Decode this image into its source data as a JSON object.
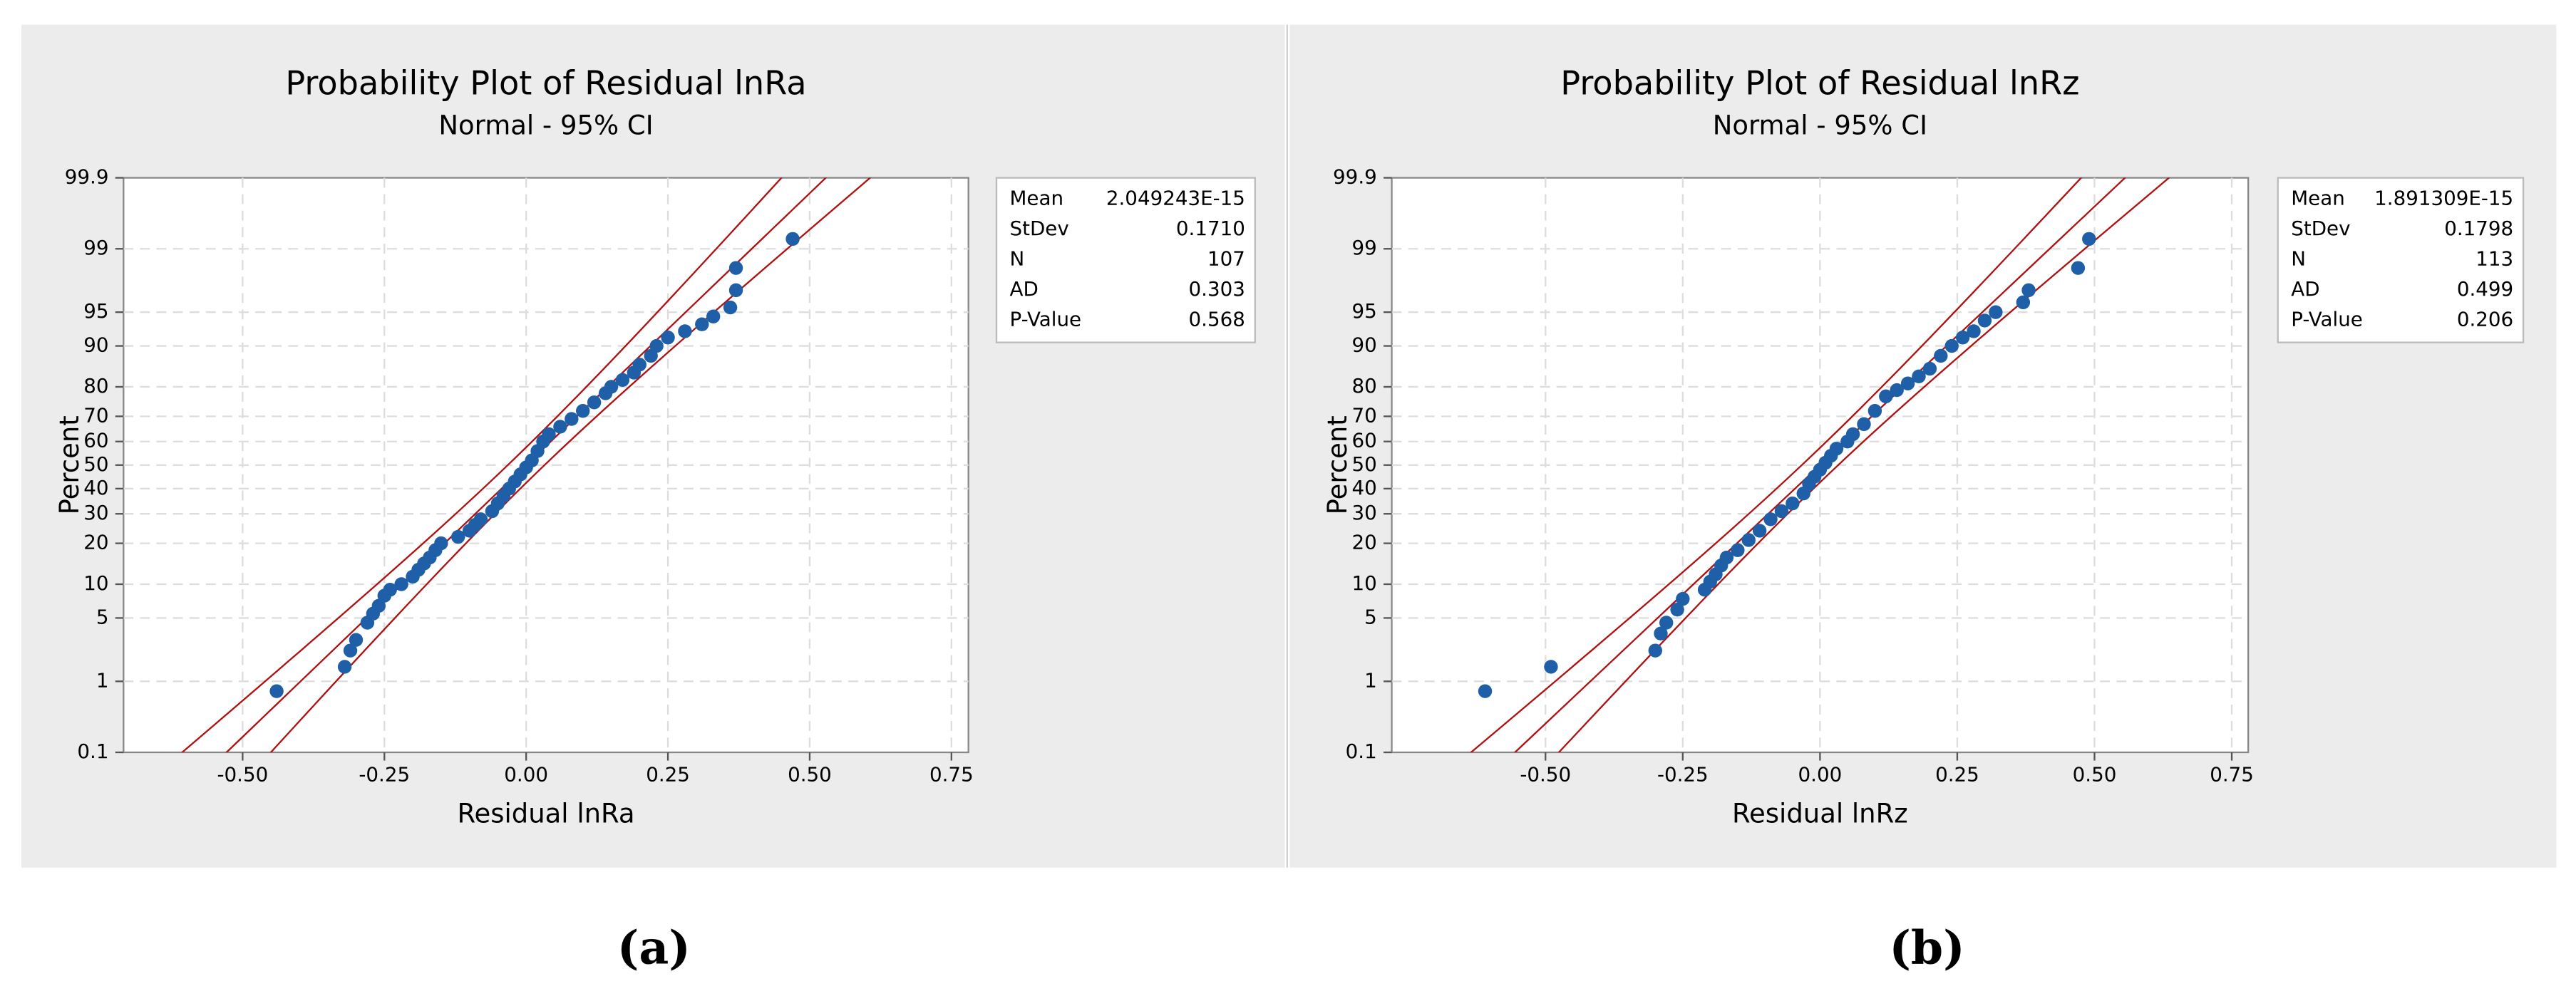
{
  "chart_data": [
    {
      "type": "scatter",
      "title": "Probability Plot of Residual lnRa",
      "subtitle": "Normal - 95% CI",
      "xlabel": "Residual lnRa",
      "ylabel": "Percent",
      "panel_label": "(a)",
      "x": [
        -0.44,
        -0.32,
        -0.31,
        -0.3,
        -0.28,
        -0.27,
        -0.26,
        -0.25,
        -0.24,
        -0.22,
        -0.2,
        -0.19,
        -0.18,
        -0.17,
        -0.16,
        -0.15,
        -0.12,
        -0.1,
        -0.09,
        -0.08,
        -0.06,
        -0.05,
        -0.04,
        -0.03,
        -0.02,
        -0.01,
        0.0,
        0.01,
        0.02,
        0.03,
        0.04,
        0.06,
        0.08,
        0.1,
        0.12,
        0.14,
        0.15,
        0.17,
        0.19,
        0.2,
        0.22,
        0.23,
        0.25,
        0.28,
        0.31,
        0.33,
        0.36,
        0.37,
        0.37,
        0.47
      ],
      "values": [
        0.75,
        1.5,
        2.3,
        3,
        4.5,
        5.5,
        6.5,
        8,
        9,
        10,
        11.5,
        13,
        14.5,
        16,
        18,
        20,
        22,
        24,
        26,
        28,
        31,
        34,
        37,
        40,
        43,
        46,
        49,
        52,
        56,
        60,
        63,
        66,
        69,
        72,
        75,
        78,
        80,
        82,
        84,
        86,
        88,
        90,
        91.5,
        92.5,
        93.5,
        94.5,
        95.5,
        97,
        98.3,
        99.25
      ],
      "color": "#1f5fa8",
      "ci_color": "#b01010",
      "xlim": [
        -0.71,
        0.78
      ],
      "xticks": [
        {
          "value": -0.5,
          "label": "-0.50"
        },
        -0.25,
        {
          "value": 0,
          "label": "0.00"
        },
        0.25,
        {
          "value": 0.5,
          "label": "0.50"
        },
        0.75
      ],
      "ylim": [
        0.1,
        99.9
      ],
      "yscale": "probit",
      "yticks": [
        0.1,
        1,
        5,
        10,
        20,
        30,
        40,
        50,
        60,
        70,
        80,
        90,
        95,
        99,
        99.9
      ],
      "grid": true,
      "stats": [
        [
          "Mean",
          "2.049243E-15"
        ],
        [
          "StDev",
          "0.1710"
        ],
        [
          "N",
          "107"
        ],
        [
          "AD",
          "0.303"
        ],
        [
          "P-Value",
          "0.568"
        ]
      ]
    },
    {
      "type": "scatter",
      "title": "Probability Plot of Residual lnRz",
      "subtitle": "Normal - 95% CI",
      "xlabel": "Residual lnRz",
      "ylabel": "Percent",
      "panel_label": "(b)",
      "x": [
        -0.61,
        -0.49,
        -0.3,
        -0.29,
        -0.28,
        -0.26,
        -0.25,
        -0.21,
        -0.2,
        -0.19,
        -0.18,
        -0.17,
        -0.15,
        -0.13,
        -0.11,
        -0.09,
        -0.07,
        -0.05,
        -0.03,
        -0.02,
        -0.01,
        0.0,
        0.01,
        0.02,
        0.03,
        0.05,
        0.06,
        0.08,
        0.1,
        0.12,
        0.14,
        0.16,
        0.18,
        0.2,
        0.22,
        0.24,
        0.26,
        0.28,
        0.3,
        0.32,
        0.37,
        0.38,
        0.47,
        0.49
      ],
      "values": [
        0.75,
        1.5,
        2.3,
        3.5,
        4.5,
        6,
        7.5,
        9,
        10.5,
        12,
        14,
        16,
        18,
        21,
        24,
        28,
        31,
        34,
        38,
        42,
        45,
        48,
        51,
        54,
        57,
        60,
        63,
        67,
        72,
        77,
        79,
        81,
        83,
        85,
        88,
        90,
        91.5,
        92.5,
        94,
        95,
        96,
        97,
        98.3,
        99.25
      ],
      "color": "#1f5fa8",
      "ci_color": "#b01010",
      "xlim": [
        -0.78,
        0.78
      ],
      "xticks": [
        {
          "value": -0.5,
          "label": "-0.50"
        },
        -0.25,
        {
          "value": 0,
          "label": "0.00"
        },
        0.25,
        {
          "value": 0.5,
          "label": "0.50"
        },
        0.75
      ],
      "ylim": [
        0.1,
        99.9
      ],
      "yscale": "probit",
      "yticks": [
        0.1,
        1,
        5,
        10,
        20,
        30,
        40,
        50,
        60,
        70,
        80,
        90,
        95,
        99,
        99.9
      ],
      "grid": true,
      "stats": [
        [
          "Mean",
          "1.891309E-15"
        ],
        [
          "StDev",
          "0.1798"
        ],
        [
          "N",
          "113"
        ],
        [
          "AD",
          "0.499"
        ],
        [
          "P-Value",
          "0.206"
        ]
      ]
    }
  ]
}
